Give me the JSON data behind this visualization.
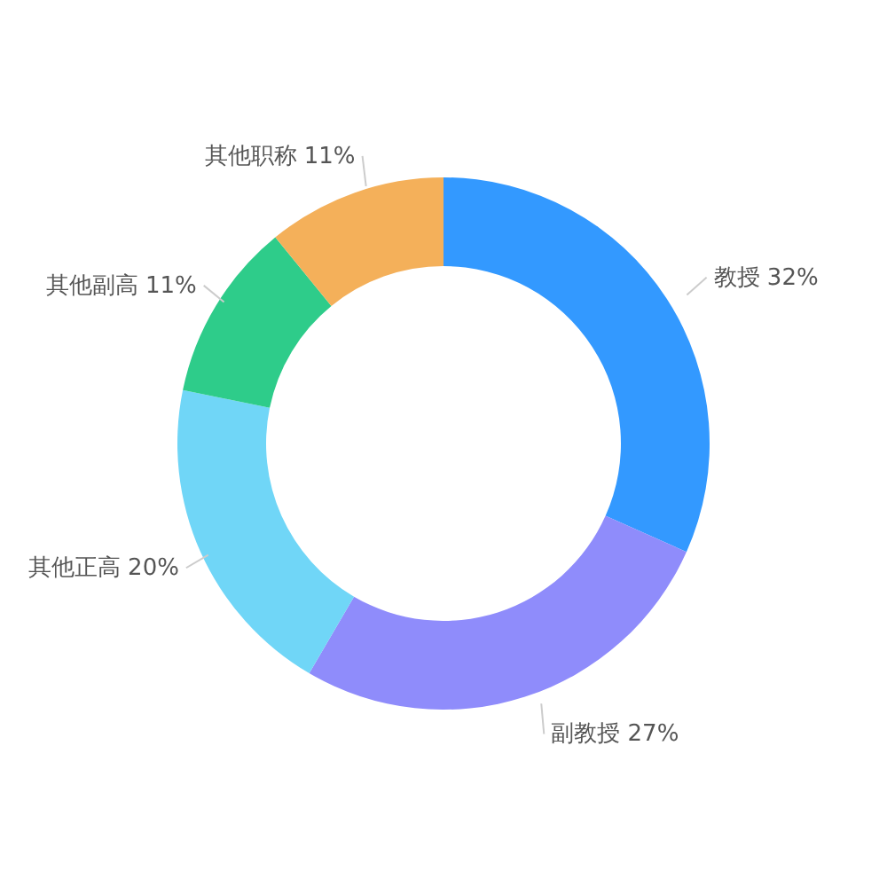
{
  "chart_data": {
    "type": "donut",
    "categories": [
      "教授",
      "副教授",
      "其他正高",
      "其他副高",
      "其他职称"
    ],
    "values": [
      32,
      27,
      20,
      11,
      11
    ],
    "value_labels": [
      "32%",
      "27%",
      "20%",
      "11%",
      "11%"
    ],
    "colors": [
      "#3399ff",
      "#8f8cfb",
      "#70d6f7",
      "#2ecc8a",
      "#f4b05a"
    ]
  }
}
